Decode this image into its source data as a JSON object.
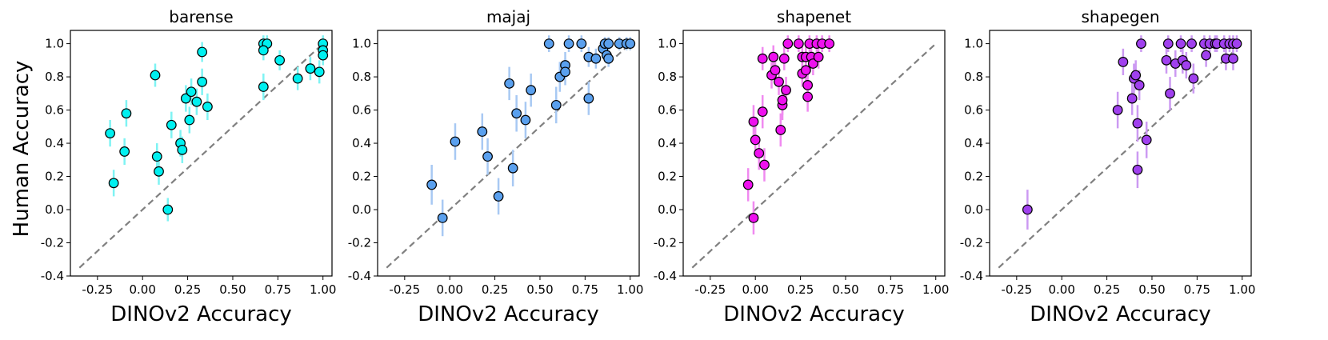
{
  "figure": {
    "shared_ylabel": "Human Accuracy",
    "shared_xlabel": "DINOv2 Accuracy"
  },
  "chart_data": [
    {
      "type": "scatter",
      "title": "barense",
      "color": "#00f0f0",
      "error_color": "#7ff3f3",
      "xlabel": "DINOv2 Accuracy",
      "ylabel": "Human Accuracy",
      "xlim": [
        -0.4,
        1.05
      ],
      "ylim": [
        -0.4,
        1.08
      ],
      "xticks": [
        "-0.25",
        "0.00",
        "0.25",
        "0.50",
        "0.75",
        "1.00"
      ],
      "yticks": [
        "-0.4",
        "-0.2",
        "0.0",
        "0.2",
        "0.4",
        "0.6",
        "0.8",
        "1.0"
      ],
      "diagonal": true,
      "points": [
        {
          "x": -0.18,
          "y": 0.46,
          "err": 0.08
        },
        {
          "x": -0.16,
          "y": 0.16,
          "err": 0.08
        },
        {
          "x": -0.1,
          "y": 0.35,
          "err": 0.08
        },
        {
          "x": -0.09,
          "y": 0.58,
          "err": 0.08
        },
        {
          "x": 0.07,
          "y": 0.81,
          "err": 0.07
        },
        {
          "x": 0.08,
          "y": 0.32,
          "err": 0.08
        },
        {
          "x": 0.09,
          "y": 0.23,
          "err": 0.08
        },
        {
          "x": 0.14,
          "y": 0.0,
          "err": 0.07
        },
        {
          "x": 0.16,
          "y": 0.51,
          "err": 0.08
        },
        {
          "x": 0.21,
          "y": 0.4,
          "err": 0.08
        },
        {
          "x": 0.22,
          "y": 0.36,
          "err": 0.08
        },
        {
          "x": 0.24,
          "y": 0.67,
          "err": 0.08
        },
        {
          "x": 0.26,
          "y": 0.54,
          "err": 0.08
        },
        {
          "x": 0.27,
          "y": 0.71,
          "err": 0.08
        },
        {
          "x": 0.3,
          "y": 0.65,
          "err": 0.08
        },
        {
          "x": 0.33,
          "y": 0.95,
          "err": 0.06
        },
        {
          "x": 0.33,
          "y": 0.77,
          "err": 0.08
        },
        {
          "x": 0.36,
          "y": 0.62,
          "err": 0.08
        },
        {
          "x": 0.67,
          "y": 1.0,
          "err": 0.05
        },
        {
          "x": 0.69,
          "y": 1.0,
          "err": 0.05
        },
        {
          "x": 0.67,
          "y": 0.96,
          "err": 0.06
        },
        {
          "x": 0.67,
          "y": 0.74,
          "err": 0.08
        },
        {
          "x": 0.76,
          "y": 0.9,
          "err": 0.06
        },
        {
          "x": 0.86,
          "y": 0.79,
          "err": 0.07
        },
        {
          "x": 0.93,
          "y": 0.85,
          "err": 0.07
        },
        {
          "x": 0.98,
          "y": 0.83,
          "err": 0.07
        },
        {
          "x": 1.0,
          "y": 1.0,
          "err": 0.05
        },
        {
          "x": 1.0,
          "y": 0.96,
          "err": 0.06
        },
        {
          "x": 1.0,
          "y": 0.93,
          "err": 0.06
        }
      ]
    },
    {
      "type": "scatter",
      "title": "majaj",
      "color": "#5aa0ee",
      "error_color": "#a8c9f3",
      "xlabel": "DINOv2 Accuracy",
      "ylabel": "",
      "xlim": [
        -0.4,
        1.05
      ],
      "ylim": [
        -0.4,
        1.08
      ],
      "xticks": [
        "-0.25",
        "0.00",
        "0.25",
        "0.50",
        "0.75",
        "1.00"
      ],
      "yticks": [
        "-0.4",
        "-0.2",
        "0.0",
        "0.2",
        "0.4",
        "0.6",
        "0.8",
        "1.0"
      ],
      "diagonal": true,
      "points": [
        {
          "x": -0.1,
          "y": 0.15,
          "err": 0.12
        },
        {
          "x": -0.04,
          "y": -0.05,
          "err": 0.11
        },
        {
          "x": 0.03,
          "y": 0.41,
          "err": 0.11
        },
        {
          "x": 0.18,
          "y": 0.47,
          "err": 0.11
        },
        {
          "x": 0.21,
          "y": 0.32,
          "err": 0.11
        },
        {
          "x": 0.27,
          "y": 0.08,
          "err": 0.11
        },
        {
          "x": 0.33,
          "y": 0.76,
          "err": 0.1
        },
        {
          "x": 0.35,
          "y": 0.25,
          "err": 0.11
        },
        {
          "x": 0.37,
          "y": 0.58,
          "err": 0.11
        },
        {
          "x": 0.42,
          "y": 0.54,
          "err": 0.11
        },
        {
          "x": 0.45,
          "y": 0.72,
          "err": 0.1
        },
        {
          "x": 0.55,
          "y": 1.0,
          "err": 0.05
        },
        {
          "x": 0.59,
          "y": 0.63,
          "err": 0.11
        },
        {
          "x": 0.61,
          "y": 0.8,
          "err": 0.09
        },
        {
          "x": 0.64,
          "y": 0.87,
          "err": 0.08
        },
        {
          "x": 0.64,
          "y": 0.83,
          "err": 0.08
        },
        {
          "x": 0.66,
          "y": 1.0,
          "err": 0.05
        },
        {
          "x": 0.73,
          "y": 1.0,
          "err": 0.05
        },
        {
          "x": 0.77,
          "y": 0.92,
          "err": 0.06
        },
        {
          "x": 0.77,
          "y": 0.67,
          "err": 0.1
        },
        {
          "x": 0.81,
          "y": 0.91,
          "err": 0.06
        },
        {
          "x": 0.85,
          "y": 0.97,
          "err": 0.05
        },
        {
          "x": 0.86,
          "y": 1.0,
          "err": 0.04
        },
        {
          "x": 0.87,
          "y": 0.93,
          "err": 0.05
        },
        {
          "x": 0.88,
          "y": 0.91,
          "err": 0.05
        },
        {
          "x": 0.88,
          "y": 1.0,
          "err": 0.04
        },
        {
          "x": 0.94,
          "y": 1.0,
          "err": 0.04
        },
        {
          "x": 0.98,
          "y": 1.0,
          "err": 0.04
        },
        {
          "x": 1.0,
          "y": 1.0,
          "err": 0.04
        }
      ]
    },
    {
      "type": "scatter",
      "title": "shapenet",
      "color": "#ee11ee",
      "error_color": "#f08af0",
      "xlabel": "DINOv2 Accuracy",
      "ylabel": "",
      "xlim": [
        -0.4,
        1.05
      ],
      "ylim": [
        -0.4,
        1.08
      ],
      "xticks": [
        "-0.25",
        "0.00",
        "0.25",
        "0.50",
        "0.75",
        "1.00"
      ],
      "yticks": [
        "-0.4",
        "-0.2",
        "0.0",
        "0.2",
        "0.4",
        "0.6",
        "0.8",
        "1.0"
      ],
      "diagonal": true,
      "points": [
        {
          "x": -0.04,
          "y": 0.15,
          "err": 0.1
        },
        {
          "x": -0.01,
          "y": -0.05,
          "err": 0.1
        },
        {
          "x": -0.01,
          "y": 0.53,
          "err": 0.1
        },
        {
          "x": 0.0,
          "y": 0.42,
          "err": 0.1
        },
        {
          "x": 0.02,
          "y": 0.34,
          "err": 0.1
        },
        {
          "x": 0.04,
          "y": 0.59,
          "err": 0.1
        },
        {
          "x": 0.04,
          "y": 0.91,
          "err": 0.07
        },
        {
          "x": 0.05,
          "y": 0.27,
          "err": 0.1
        },
        {
          "x": 0.09,
          "y": 0.81,
          "err": 0.08
        },
        {
          "x": 0.1,
          "y": 0.92,
          "err": 0.07
        },
        {
          "x": 0.11,
          "y": 0.84,
          "err": 0.08
        },
        {
          "x": 0.13,
          "y": 0.77,
          "err": 0.08
        },
        {
          "x": 0.14,
          "y": 0.48,
          "err": 0.1
        },
        {
          "x": 0.15,
          "y": 0.63,
          "err": 0.09
        },
        {
          "x": 0.15,
          "y": 0.66,
          "err": 0.09
        },
        {
          "x": 0.16,
          "y": 0.91,
          "err": 0.07
        },
        {
          "x": 0.17,
          "y": 0.72,
          "err": 0.08
        },
        {
          "x": 0.18,
          "y": 1.0,
          "err": 0.05
        },
        {
          "x": 0.24,
          "y": 1.0,
          "err": 0.05
        },
        {
          "x": 0.26,
          "y": 0.92,
          "err": 0.07
        },
        {
          "x": 0.26,
          "y": 0.82,
          "err": 0.08
        },
        {
          "x": 0.28,
          "y": 0.84,
          "err": 0.08
        },
        {
          "x": 0.28,
          "y": 0.92,
          "err": 0.07
        },
        {
          "x": 0.29,
          "y": 0.75,
          "err": 0.08
        },
        {
          "x": 0.29,
          "y": 0.68,
          "err": 0.09
        },
        {
          "x": 0.3,
          "y": 1.0,
          "err": 0.05
        },
        {
          "x": 0.31,
          "y": 0.92,
          "err": 0.07
        },
        {
          "x": 0.32,
          "y": 0.88,
          "err": 0.07
        },
        {
          "x": 0.34,
          "y": 1.0,
          "err": 0.05
        },
        {
          "x": 0.35,
          "y": 0.92,
          "err": 0.07
        },
        {
          "x": 0.37,
          "y": 1.0,
          "err": 0.05
        },
        {
          "x": 0.41,
          "y": 1.0,
          "err": 0.05
        }
      ]
    },
    {
      "type": "scatter",
      "title": "shapegen",
      "color": "#a040ee",
      "error_color": "#cc9af2",
      "xlabel": "DINOv2 Accuracy",
      "ylabel": "",
      "xlim": [
        -0.4,
        1.05
      ],
      "ylim": [
        -0.4,
        1.08
      ],
      "xticks": [
        "-0.25",
        "0.00",
        "0.25",
        "0.50",
        "0.75",
        "1.00"
      ],
      "yticks": [
        "-0.4",
        "-0.2",
        "0.0",
        "0.2",
        "0.4",
        "0.6",
        "0.8",
        "1.0"
      ],
      "diagonal": true,
      "points": [
        {
          "x": -0.19,
          "y": 0.0,
          "err": 0.12
        },
        {
          "x": 0.31,
          "y": 0.6,
          "err": 0.11
        },
        {
          "x": 0.34,
          "y": 0.89,
          "err": 0.08
        },
        {
          "x": 0.39,
          "y": 0.67,
          "err": 0.1
        },
        {
          "x": 0.4,
          "y": 0.79,
          "err": 0.09
        },
        {
          "x": 0.41,
          "y": 0.81,
          "err": 0.09
        },
        {
          "x": 0.42,
          "y": 0.52,
          "err": 0.11
        },
        {
          "x": 0.42,
          "y": 0.24,
          "err": 0.11
        },
        {
          "x": 0.43,
          "y": 0.75,
          "err": 0.09
        },
        {
          "x": 0.44,
          "y": 1.0,
          "err": 0.05
        },
        {
          "x": 0.47,
          "y": 0.42,
          "err": 0.11
        },
        {
          "x": 0.58,
          "y": 0.9,
          "err": 0.08
        },
        {
          "x": 0.59,
          "y": 1.0,
          "err": 0.05
        },
        {
          "x": 0.6,
          "y": 0.7,
          "err": 0.1
        },
        {
          "x": 0.63,
          "y": 0.88,
          "err": 0.08
        },
        {
          "x": 0.66,
          "y": 1.0,
          "err": 0.05
        },
        {
          "x": 0.67,
          "y": 0.9,
          "err": 0.08
        },
        {
          "x": 0.69,
          "y": 0.87,
          "err": 0.08
        },
        {
          "x": 0.72,
          "y": 1.0,
          "err": 0.05
        },
        {
          "x": 0.73,
          "y": 0.79,
          "err": 0.09
        },
        {
          "x": 0.79,
          "y": 1.0,
          "err": 0.05
        },
        {
          "x": 0.8,
          "y": 0.93,
          "err": 0.07
        },
        {
          "x": 0.82,
          "y": 1.0,
          "err": 0.05
        },
        {
          "x": 0.85,
          "y": 1.0,
          "err": 0.05
        },
        {
          "x": 0.86,
          "y": 1.0,
          "err": 0.05
        },
        {
          "x": 0.9,
          "y": 1.0,
          "err": 0.05
        },
        {
          "x": 0.91,
          "y": 0.91,
          "err": 0.07
        },
        {
          "x": 0.93,
          "y": 1.0,
          "err": 0.05
        },
        {
          "x": 0.95,
          "y": 1.0,
          "err": 0.05
        },
        {
          "x": 0.95,
          "y": 0.91,
          "err": 0.07
        },
        {
          "x": 0.97,
          "y": 1.0,
          "err": 0.05
        }
      ]
    }
  ]
}
